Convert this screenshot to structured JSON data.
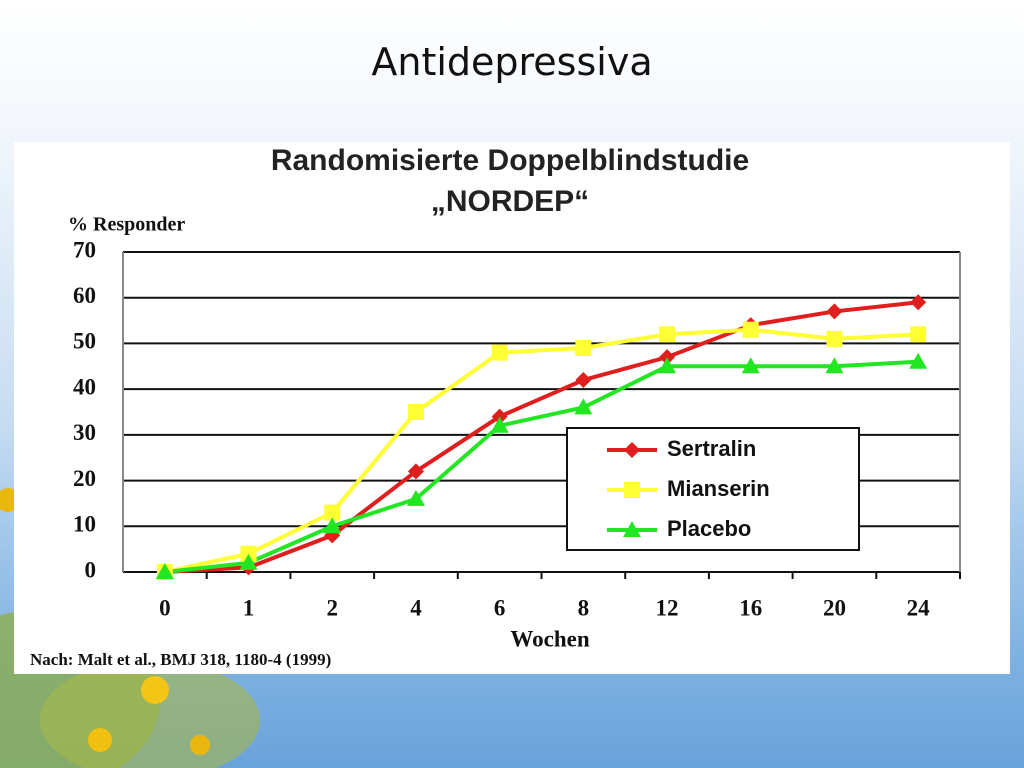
{
  "slide_title": "Antidepressiva",
  "chart_data": {
    "type": "line",
    "title": [
      "Randomisierte Doppelblindstudie",
      "„NORDEP“"
    ],
    "y_label": "% Responder",
    "x_label": "Wochen",
    "source": "Nach: Malt et al., BMJ 318, 1180-4 (1999)",
    "categories": [
      "0",
      "1",
      "2",
      "4",
      "6",
      "8",
      "12",
      "16",
      "20",
      "24"
    ],
    "series": [
      {
        "name": "Sertralin",
        "color": "#e01e1e",
        "marker": "diamond",
        "values": [
          0,
          1,
          8,
          22,
          34,
          42,
          47,
          54,
          57,
          59
        ]
      },
      {
        "name": "Mianserin",
        "color": "#ffff33",
        "marker": "square",
        "values": [
          0,
          4,
          13,
          35,
          48,
          49,
          52,
          53,
          51,
          52
        ]
      },
      {
        "name": "Placebo",
        "color": "#22e622",
        "marker": "triangle",
        "values": [
          0,
          2,
          10,
          16,
          32,
          36,
          45,
          45,
          45,
          46
        ]
      }
    ],
    "ylim": [
      0,
      70
    ],
    "yticks": [
      0,
      10,
      20,
      30,
      40,
      50,
      60,
      70
    ],
    "grid": true,
    "legend": "lower right"
  }
}
